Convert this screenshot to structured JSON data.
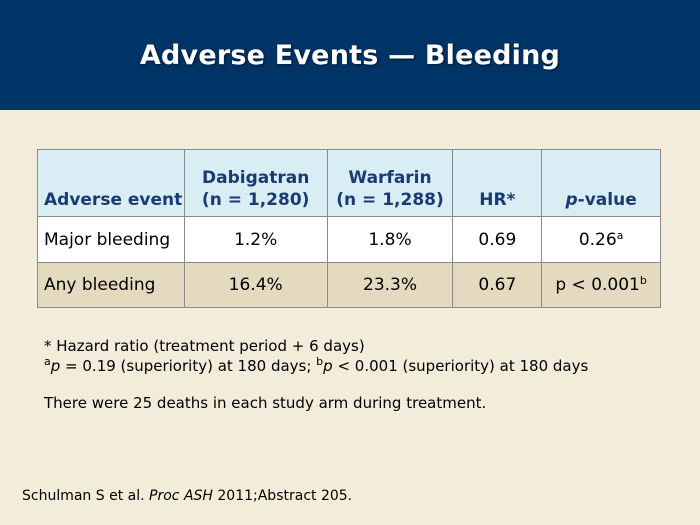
{
  "title": "Adverse Events — Bleeding",
  "table": {
    "headers": {
      "event": "Adverse event",
      "dabigatran_name": "Dabigatran",
      "dabigatran_n": "(n = 1,280)",
      "warfarin_name": "Warfarin",
      "warfarin_n": "(n = 1,288)",
      "hr": "HR*",
      "pvalue_italic": "p",
      "pvalue_rest": "-value"
    },
    "rows": [
      {
        "event": "Major bleeding",
        "dabigatran": "1.2%",
        "warfarin": "1.8%",
        "hr": "0.69",
        "p": "0.26",
        "p_sup": "a"
      },
      {
        "event": "Any bleeding",
        "dabigatran": "16.4%",
        "warfarin": "23.3%",
        "hr": "0.67",
        "p": "p < 0.001",
        "p_sup": "b"
      }
    ]
  },
  "footnotes": {
    "star": "* Hazard ratio (treatment period + 6 days)",
    "a_sup": "a",
    "a_p": "p",
    "a_text": " = 0.19 (superiority) at 180 days; ",
    "b_sup": "b",
    "b_p": "p",
    "b_text": " < 0.001 (superiority) at 180 days"
  },
  "deaths_note": "There were 25 deaths in each study arm during treatment.",
  "citation": {
    "authors": "Schulman S et al. ",
    "journal": "Proc ASH",
    "rest": " 2011;Abstract 205."
  },
  "colors": {
    "header_bg": "#003366",
    "page_bg": "#f2ecda",
    "table_header_bg": "#d8edf4",
    "table_header_text": "#1a3a73",
    "row_alt_bg": "#e4dac0"
  }
}
